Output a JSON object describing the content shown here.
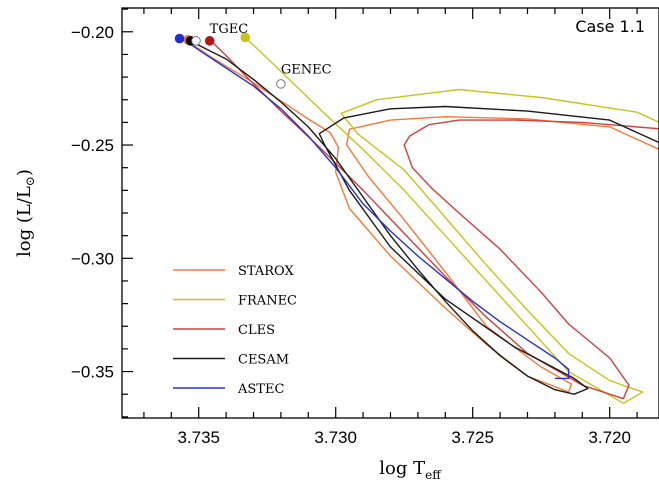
{
  "chart_data": {
    "type": "line",
    "title": "",
    "case_label": "Case 1.1",
    "xlabel_main": "log T",
    "xlabel_sub": "eff",
    "ylabel_main": "log (L/L",
    "ylabel_sun": "⊙",
    "ylabel_close": ")",
    "xlim": [
      3.7378,
      3.7182
    ],
    "ylim": [
      -0.3705,
      -0.1895
    ],
    "x_ticks": [
      3.735,
      3.73,
      3.725,
      3.72
    ],
    "x_tick_labels": [
      "3.735",
      "3.730",
      "3.725",
      "3.720"
    ],
    "y_ticks": [
      -0.2,
      -0.25,
      -0.3,
      -0.35
    ],
    "y_tick_labels": [
      "−0.20",
      "−0.25",
      "−0.30",
      "−0.35"
    ],
    "grid": false,
    "legend_position": "lower-left",
    "annotations": [
      {
        "text": "TGEC",
        "x": 3.7346,
        "y": -0.2005
      },
      {
        "text": "GENEC",
        "x": 3.732,
        "y": -0.2185
      }
    ],
    "series": [
      {
        "name": "STAROX",
        "color": "#f47a3a",
        "x": [
          3.7355,
          3.7345,
          3.733,
          3.732,
          3.731,
          3.7302,
          3.7299,
          3.73,
          3.7295,
          3.728,
          3.726,
          3.7245,
          3.723,
          3.7215,
          3.7214,
          3.7225,
          3.7245,
          3.726,
          3.7275,
          3.7288,
          3.7296,
          3.7295,
          3.728,
          3.726,
          3.723,
          3.72,
          3.718
        ],
        "y": [
          -0.2035,
          -0.2115,
          -0.2225,
          -0.2305,
          -0.2385,
          -0.2445,
          -0.251,
          -0.262,
          -0.278,
          -0.299,
          -0.322,
          -0.338,
          -0.352,
          -0.359,
          -0.3555,
          -0.348,
          -0.33,
          -0.306,
          -0.283,
          -0.264,
          -0.25,
          -0.243,
          -0.239,
          -0.2375,
          -0.2385,
          -0.242,
          -0.253
        ]
      },
      {
        "name": "FRANEC",
        "color": "#c8c31e",
        "x": [
          3.7333,
          3.732,
          3.7305,
          3.729,
          3.7275,
          3.726,
          3.7245,
          3.723,
          3.7215,
          3.7195,
          3.7188,
          3.72,
          3.7215,
          3.723,
          3.7245,
          3.726,
          3.7275,
          3.7292,
          3.7298,
          3.7285,
          3.7265,
          3.7255,
          3.7225,
          3.719,
          3.718
        ],
        "y": [
          -0.2025,
          -0.2175,
          -0.235,
          -0.252,
          -0.27,
          -0.29,
          -0.31,
          -0.33,
          -0.35,
          -0.364,
          -0.359,
          -0.354,
          -0.342,
          -0.323,
          -0.303,
          -0.282,
          -0.261,
          -0.245,
          -0.236,
          -0.23,
          -0.227,
          -0.2255,
          -0.229,
          -0.2355,
          -0.241
        ]
      },
      {
        "name": "CLES",
        "color": "#d04040",
        "x": [
          3.7346,
          3.734,
          3.733,
          3.732,
          3.7305,
          3.729,
          3.7275,
          3.726,
          3.7245,
          3.723,
          3.721,
          3.7195,
          3.7193,
          3.72,
          3.7215,
          3.7225,
          3.724,
          3.7255,
          3.7265,
          3.7272,
          3.7275,
          3.7273,
          3.7266,
          3.7255,
          3.7235,
          3.721,
          3.718
        ],
        "y": [
          -0.2035,
          -0.2105,
          -0.223,
          -0.235,
          -0.252,
          -0.27,
          -0.289,
          -0.308,
          -0.326,
          -0.342,
          -0.356,
          -0.362,
          -0.356,
          -0.344,
          -0.329,
          -0.315,
          -0.296,
          -0.28,
          -0.269,
          -0.26,
          -0.25,
          -0.246,
          -0.241,
          -0.239,
          -0.239,
          -0.24,
          -0.243
        ]
      },
      {
        "name": "CESAM",
        "color": "#1a1a1a",
        "x": [
          3.7354,
          3.734,
          3.733,
          3.732,
          3.731,
          3.73,
          3.729,
          3.728,
          3.727,
          3.726,
          3.725,
          3.724,
          3.723,
          3.722,
          3.7213,
          3.7208,
          3.7213,
          3.7235,
          3.726,
          3.728,
          3.7295,
          3.7304,
          3.7306,
          3.7297,
          3.728,
          3.726,
          3.723,
          3.72,
          3.718
        ],
        "y": [
          -0.2035,
          -0.212,
          -0.221,
          -0.231,
          -0.242,
          -0.256,
          -0.273,
          -0.29,
          -0.305,
          -0.319,
          -0.332,
          -0.343,
          -0.352,
          -0.358,
          -0.36,
          -0.3575,
          -0.353,
          -0.339,
          -0.318,
          -0.295,
          -0.27,
          -0.25,
          -0.245,
          -0.238,
          -0.234,
          -0.233,
          -0.235,
          -0.239,
          -0.25
        ]
      },
      {
        "name": "ASTEC",
        "color": "#2733c9",
        "x": [
          3.7356,
          3.735,
          3.734,
          3.733,
          3.732,
          3.731,
          3.73,
          3.729,
          3.728,
          3.727,
          3.726,
          3.725,
          3.724,
          3.723,
          3.722,
          3.7215,
          3.7215,
          3.722
        ],
        "y": [
          -0.203,
          -0.208,
          -0.216,
          -0.224,
          -0.234,
          -0.246,
          -0.26,
          -0.276,
          -0.288,
          -0.299,
          -0.309,
          -0.319,
          -0.328,
          -0.336,
          -0.344,
          -0.349,
          -0.353,
          -0.353
        ]
      }
    ],
    "start_markers": [
      {
        "series": "STAROX",
        "x": 3.7354,
        "y": -0.2035,
        "fill": "#f47a3a"
      },
      {
        "series": "FRANEC",
        "x": 3.7333,
        "y": -0.2025,
        "fill": "#c8c31e"
      },
      {
        "series": "CLES",
        "x": 3.7346,
        "y": -0.204,
        "fill": "#b01818"
      },
      {
        "series": "CESAM",
        "x": 3.7353,
        "y": -0.204,
        "fill": "#000000"
      },
      {
        "series": "ASTEC",
        "x": 3.7357,
        "y": -0.203,
        "fill": "#1e2fd6"
      },
      {
        "series": "TGEC",
        "x": 3.7351,
        "y": -0.204,
        "fill": "#ffffff"
      },
      {
        "series": "GENEC",
        "x": 3.732,
        "y": -0.223,
        "fill": "#ffffff"
      }
    ]
  }
}
